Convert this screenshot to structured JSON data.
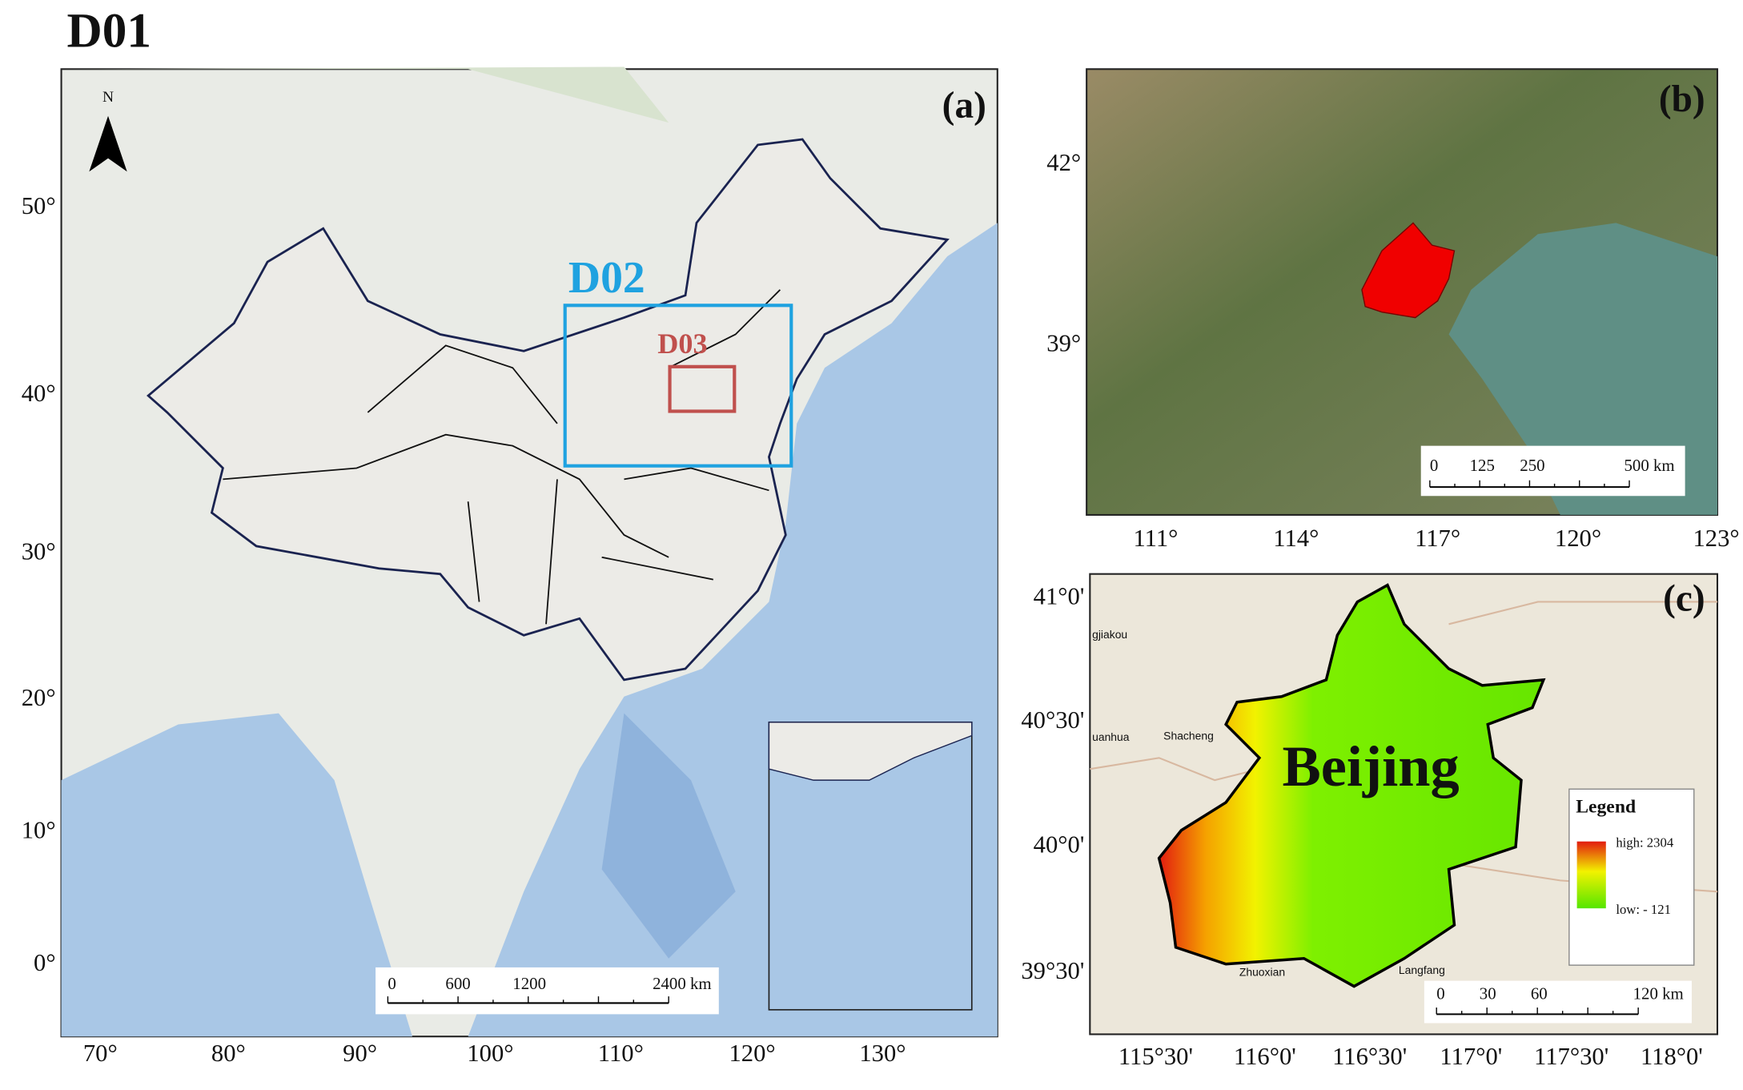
{
  "title": "D01",
  "panels": [
    {
      "label": "(a)",
      "north": "N",
      "domains": [
        "D02",
        "D03"
      ],
      "xticks": [
        "70°",
        "80°",
        "90°",
        "100°",
        "110°",
        "120°",
        "130°"
      ],
      "yticks": [
        "50°",
        "40°",
        "30°",
        "20°",
        "10°",
        "0°"
      ],
      "scalebar": [
        "0",
        "600",
        "1200",
        "2400 km"
      ]
    },
    {
      "label": "(b)",
      "xticks": [
        "111°",
        "114°",
        "117°",
        "120°",
        "123°"
      ],
      "yticks": [
        "42°",
        "39°"
      ],
      "scalebar": [
        "0",
        "125",
        "250",
        "500 km"
      ]
    },
    {
      "label": "(c)",
      "region": "Beijing",
      "places": [
        "gjiakou",
        "uanhua",
        "Shacheng",
        "Zhuoxian",
        "Langfang"
      ],
      "xticks": [
        "115°30'",
        "116°0'",
        "116°30'",
        "117°0'",
        "117°30'",
        "118°0'"
      ],
      "yticks": [
        "41°0'",
        "40°30'",
        "40°0'",
        "39°30'"
      ],
      "legend": {
        "title": "Legend",
        "high": "high: 2304",
        "low": "low: - 121"
      },
      "scalebar": [
        "0",
        "30",
        "60",
        "120 km"
      ]
    }
  ]
}
